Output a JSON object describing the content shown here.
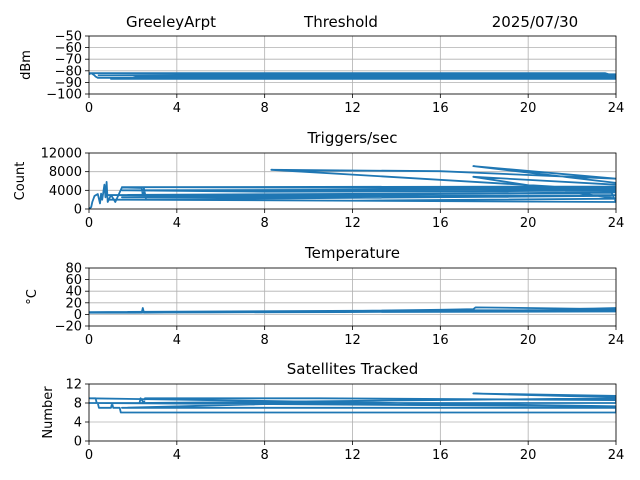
{
  "header": {
    "station": "GreeleyArpt",
    "center_title": "Threshold",
    "date": "2025/07/30"
  },
  "colors": {
    "series": "#1f77b4",
    "grid": "#b0b0b0",
    "frame": "#000000"
  },
  "chart_data": [
    {
      "type": "line",
      "title": "",
      "ylabel": "dBm",
      "xlim": [
        0,
        24
      ],
      "ylim": [
        -100,
        -50
      ],
      "xticks": [
        0,
        4,
        8,
        12,
        16,
        20,
        24
      ],
      "yticks": [
        -100,
        -90,
        -80,
        -70,
        -60,
        -50
      ],
      "grid": true,
      "series": [
        {
          "values": [
            [
              0,
              -83
            ],
            [
              0.1,
              -82
            ],
            [
              0.25,
              -84
            ],
            [
              0.3,
              -85
            ],
            [
              0.4,
              -86
            ],
            [
              1,
              -86
            ],
            [
              2,
              -86
            ],
            [
              2.2,
              -85
            ],
            [
              12,
              -85
            ],
            [
              24,
              -85
            ],
            [
              23.5,
              -82
            ],
            [
              0,
              -82
            ],
            [
              10,
              -83
            ],
            [
              24,
              -83
            ],
            [
              24,
              -86
            ],
            [
              2.2,
              -86
            ],
            [
              1,
              -87
            ],
            [
              1.3,
              -87
            ],
            [
              24,
              -87
            ],
            [
              24,
              -84
            ],
            [
              16,
              -84
            ],
            [
              0.4,
              -84
            ]
          ]
        }
      ]
    },
    {
      "type": "line",
      "title": "Triggers/sec",
      "ylabel": "Count",
      "xlim": [
        0,
        24
      ],
      "ylim": [
        0,
        12000
      ],
      "xticks": [
        0,
        4,
        8,
        12,
        16,
        20,
        24
      ],
      "yticks": [
        0,
        4000,
        8000,
        12000
      ],
      "grid": true,
      "series": [
        {
          "values": [
            [
              0,
              0
            ],
            [
              0.1,
              400
            ],
            [
              0.15,
              1500
            ],
            [
              0.25,
              2800
            ],
            [
              0.4,
              3200
            ],
            [
              0.5,
              1200
            ],
            [
              0.55,
              3300
            ],
            [
              0.6,
              2000
            ],
            [
              0.7,
              5200
            ],
            [
              0.75,
              2500
            ],
            [
              0.8,
              5800
            ],
            [
              0.85,
              1500
            ],
            [
              1,
              3000
            ],
            [
              1.2,
              1500
            ],
            [
              1.5,
              4600
            ],
            [
              2.4,
              4500
            ],
            [
              2.45,
              3000
            ],
            [
              2.5,
              4500
            ],
            [
              2.6,
              2000
            ],
            [
              24,
              1500
            ],
            [
              23.8,
              3500
            ],
            [
              0.8,
              3000
            ],
            [
              10,
              2500
            ],
            [
              23.8,
              2800
            ],
            [
              0.9,
              2000
            ],
            [
              12,
              1800
            ],
            [
              24,
              2200
            ],
            [
              24,
              3600
            ],
            [
              1.5,
              2500
            ],
            [
              8,
              2600
            ],
            [
              24,
              3000
            ],
            [
              24,
              4800
            ],
            [
              1.5,
              4700
            ],
            [
              15,
              4500
            ],
            [
              24,
              4500
            ],
            [
              24,
              4000
            ],
            [
              8.3,
              8400
            ],
            [
              16,
              8100
            ],
            [
              24,
              6500
            ],
            [
              17.5,
              9200
            ],
            [
              24,
              5600
            ],
            [
              24,
              5200
            ],
            [
              17.5,
              6900
            ],
            [
              24,
              2200
            ],
            [
              24,
              4000
            ],
            [
              17.5,
              3800
            ],
            [
              8,
              3700
            ],
            [
              1.5,
              4000
            ],
            [
              10.5,
              4100
            ],
            [
              24,
              4300
            ]
          ]
        }
      ]
    },
    {
      "type": "line",
      "title": "Temperature",
      "ylabel": "°C",
      "xlim": [
        0,
        24
      ],
      "ylim": [
        -20,
        80
      ],
      "xticks": [
        0,
        4,
        8,
        12,
        16,
        20,
        24
      ],
      "yticks": [
        -20,
        0,
        20,
        40,
        60,
        80
      ],
      "grid": true,
      "series": [
        {
          "values": [
            [
              0,
              3
            ],
            [
              2.4,
              3
            ],
            [
              2.45,
              11
            ],
            [
              2.5,
              3
            ],
            [
              8,
              4
            ],
            [
              12,
              6
            ],
            [
              16,
              8
            ],
            [
              17.5,
              9
            ],
            [
              17.6,
              12
            ],
            [
              20,
              11
            ],
            [
              22,
              10
            ],
            [
              24,
              9
            ],
            [
              24,
              11
            ],
            [
              17.5,
              5
            ],
            [
              10,
              4
            ],
            [
              0,
              3
            ],
            [
              24,
              5
            ],
            [
              24,
              7
            ],
            [
              16,
              7
            ],
            [
              0,
              4
            ]
          ]
        }
      ]
    },
    {
      "type": "line",
      "title": "Satellites Tracked",
      "ylabel": "Number",
      "xlim": [
        0,
        24
      ],
      "ylim": [
        0,
        12
      ],
      "xticks": [
        0,
        4,
        8,
        12,
        16,
        20,
        24
      ],
      "yticks": [
        0,
        4,
        8,
        12
      ],
      "grid": true,
      "series": [
        {
          "values": [
            [
              0,
              9
            ],
            [
              0.3,
              9
            ],
            [
              0.35,
              8
            ],
            [
              0.4,
              8
            ],
            [
              0.45,
              7
            ],
            [
              1,
              7
            ],
            [
              1.05,
              8
            ],
            [
              1.1,
              7
            ],
            [
              1.4,
              7
            ],
            [
              1.45,
              6
            ],
            [
              24,
              6
            ],
            [
              24,
              7
            ],
            [
              1.5,
              7
            ],
            [
              10,
              8
            ],
            [
              24,
              8
            ],
            [
              24,
              9
            ],
            [
              2.3,
              8
            ],
            [
              2.35,
              9
            ],
            [
              2.5,
              8
            ],
            [
              2.55,
              9
            ],
            [
              10.5,
              9
            ],
            [
              24,
              8.6
            ],
            [
              24,
              9.2
            ],
            [
              17.5,
              10
            ],
            [
              24,
              9.5
            ],
            [
              24,
              8
            ],
            [
              0,
              8
            ],
            [
              24,
              7.3
            ],
            [
              0,
              9
            ]
          ]
        }
      ]
    }
  ]
}
